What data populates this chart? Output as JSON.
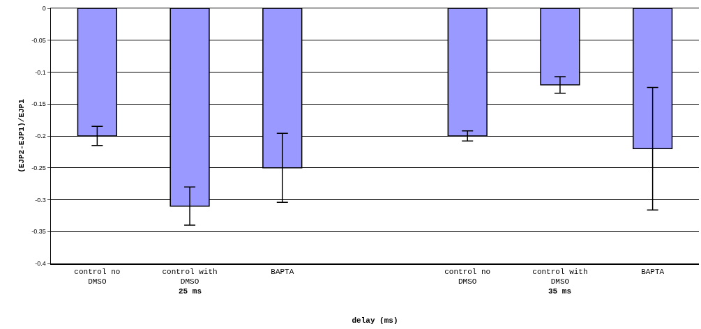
{
  "chart_data": {
    "type": "bar",
    "categories": [
      "control no DMSO",
      "control with DMSO",
      "BAPTA",
      null,
      "control no DMSO",
      "control with DMSO",
      "BAPTA"
    ],
    "values": [
      -0.2,
      -0.31,
      -0.25,
      null,
      -0.2,
      -0.12,
      -0.22
    ],
    "errors": [
      0.015,
      0.03,
      0.054,
      null,
      0.008,
      0.013,
      0.096
    ],
    "color": "#9999ff",
    "xlabel": "delay (ms)",
    "ylabel": "(EJP2-EJP1)/EJP1",
    "annotations": [
      "25 ms",
      "35 ms"
    ],
    "ylim": [
      -0.4,
      0
    ],
    "yticks": [
      -0.4,
      -0.35,
      -0.3,
      -0.25,
      -0.2,
      -0.15,
      -0.1,
      -0.05,
      0
    ],
    "grid": "y"
  }
}
